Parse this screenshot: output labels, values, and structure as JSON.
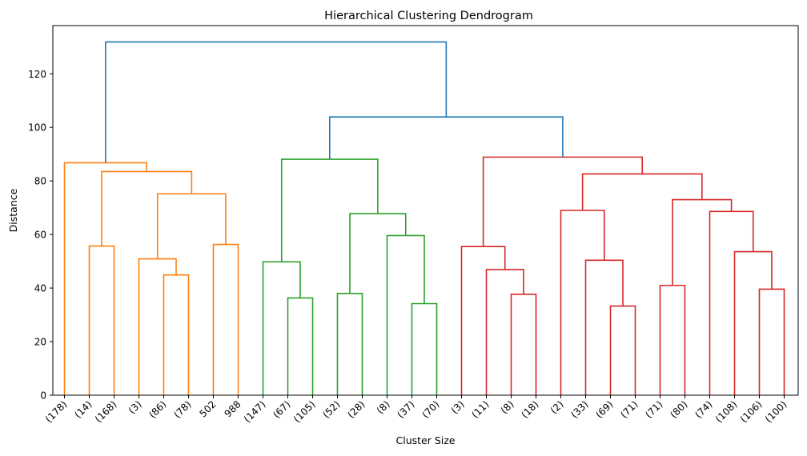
{
  "chart_data": {
    "type": "dendrogram",
    "title": "Hierarchical Clustering Dendrogram",
    "xlabel": "Cluster Size",
    "ylabel": "Distance",
    "ylim": [
      0,
      138
    ],
    "yticks": [
      0,
      20,
      40,
      60,
      80,
      100,
      120
    ],
    "colors": {
      "orange": "#ff7f0e",
      "green": "#2ca02c",
      "red": "#d62728",
      "blue": "#1f77b4"
    },
    "leaves": [
      "(178)",
      "(14)",
      "(168)",
      "(3)",
      "(86)",
      "(78)",
      "502",
      "988",
      "(147)",
      "(67)",
      "(105)",
      "(52)",
      "(28)",
      "(8)",
      "(37)",
      "(70)",
      "(3)",
      "(11)",
      "(8)",
      "(18)",
      "(2)",
      "(33)",
      "(69)",
      "(71)",
      "(71)",
      "(80)",
      "(74)",
      "(108)",
      "(106)",
      "(100)"
    ],
    "merges": [
      {
        "left": "L1",
        "right": "L2",
        "height": 55.7,
        "color": "orange"
      },
      {
        "left": "L4",
        "right": "L5",
        "height": 44.9,
        "color": "orange"
      },
      {
        "left": "L3",
        "right": "M2",
        "height": 50.9,
        "color": "orange"
      },
      {
        "left": "L6",
        "right": "L7",
        "height": 56.3,
        "color": "orange"
      },
      {
        "left": "M3",
        "right": "M4",
        "height": 75.2,
        "color": "orange"
      },
      {
        "left": "M1",
        "right": "M5",
        "height": 83.5,
        "color": "orange"
      },
      {
        "left": "L0",
        "right": "M6",
        "height": 86.8,
        "color": "orange"
      },
      {
        "left": "L9",
        "right": "L10",
        "height": 36.3,
        "color": "green"
      },
      {
        "left": "L8",
        "right": "M8",
        "height": 49.8,
        "color": "green"
      },
      {
        "left": "L11",
        "right": "L12",
        "height": 38.0,
        "color": "green"
      },
      {
        "left": "L14",
        "right": "L15",
        "height": 34.2,
        "color": "green"
      },
      {
        "left": "L13",
        "right": "M11",
        "height": 59.6,
        "color": "green"
      },
      {
        "left": "M10",
        "right": "M12",
        "height": 67.8,
        "color": "green"
      },
      {
        "left": "M9",
        "right": "M13",
        "height": 88.1,
        "color": "green"
      },
      {
        "left": "L18",
        "right": "L19",
        "height": 37.7,
        "color": "red"
      },
      {
        "left": "L17",
        "right": "M15",
        "height": 46.9,
        "color": "red"
      },
      {
        "left": "L16",
        "right": "M16",
        "height": 55.5,
        "color": "red"
      },
      {
        "left": "L22",
        "right": "L23",
        "height": 33.3,
        "color": "red"
      },
      {
        "left": "L21",
        "right": "M18",
        "height": 50.4,
        "color": "red"
      },
      {
        "left": "L20",
        "right": "M19",
        "height": 69.0,
        "color": "red"
      },
      {
        "left": "L24",
        "right": "L25",
        "height": 41.0,
        "color": "red"
      },
      {
        "left": "L28",
        "right": "L29",
        "height": 39.6,
        "color": "red"
      },
      {
        "left": "L27",
        "right": "M22",
        "height": 53.6,
        "color": "red"
      },
      {
        "left": "L26",
        "right": "M23",
        "height": 68.6,
        "color": "red"
      },
      {
        "left": "M21",
        "right": "M24",
        "height": 73.0,
        "color": "red"
      },
      {
        "left": "M20",
        "right": "M25",
        "height": 82.6,
        "color": "red"
      },
      {
        "left": "M17",
        "right": "M26",
        "height": 88.9,
        "color": "red"
      },
      {
        "left": "M14",
        "right": "M27",
        "height": 103.9,
        "color": "blue"
      },
      {
        "left": "M7",
        "right": "M28",
        "height": 131.9,
        "color": "blue"
      }
    ]
  }
}
